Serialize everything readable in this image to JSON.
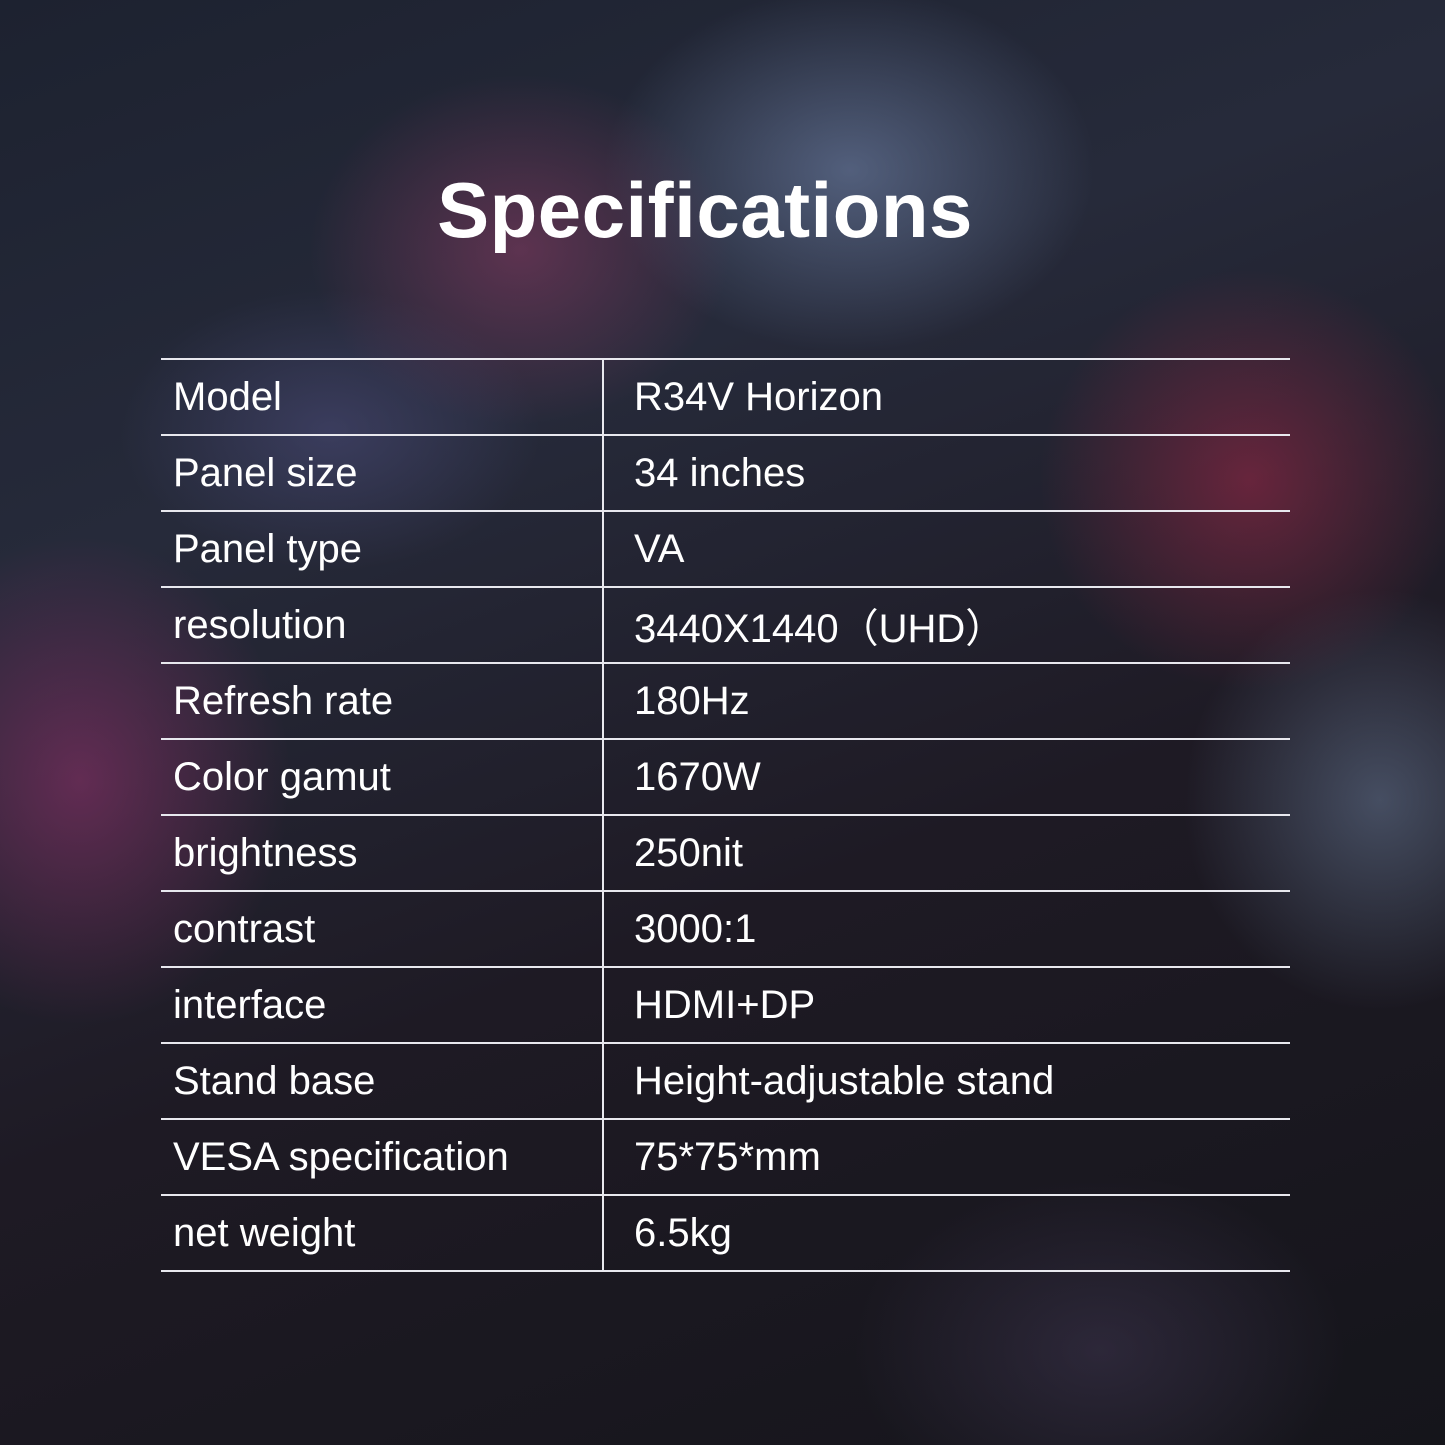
{
  "title": "Specifications",
  "specs": [
    {
      "label": "Model",
      "value": "R34V Horizon"
    },
    {
      "label": "Panel size",
      "value": "34 inches"
    },
    {
      "label": "Panel type",
      "value": "VA"
    },
    {
      "label": "resolution",
      "value": "3440X1440（UHD）"
    },
    {
      "label": "Refresh rate",
      "value": "180Hz"
    },
    {
      "label": "Color gamut",
      "value": "1670W"
    },
    {
      "label": "brightness",
      "value": "250nit"
    },
    {
      "label": "contrast",
      "value": "3000:1"
    },
    {
      "label": "interface",
      "value": "HDMI+DP"
    },
    {
      "label": "Stand base",
      "value": "Height-adjustable stand"
    },
    {
      "label": "VESA specification",
      "value": "75*75*mm"
    },
    {
      "label": "net weight",
      "value": "6.5kg"
    }
  ]
}
